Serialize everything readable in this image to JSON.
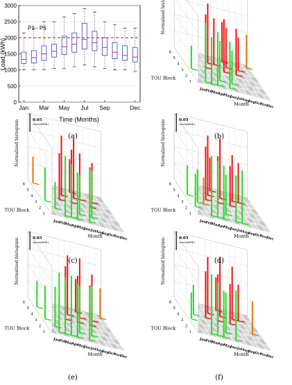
{
  "chart_data": [
    {
      "panel": "(a)",
      "type": "box",
      "xlabel": "Time (Months)",
      "ylabel": "Load (kWh)",
      "ylim": [
        0,
        3000
      ],
      "yticks": [
        "0",
        "500",
        "1000",
        "1500",
        "2000",
        "2500",
        "3000"
      ],
      "xtick_labels": [
        "Jan",
        "Mar",
        "May",
        "Jul",
        "Sep",
        "Dec"
      ],
      "categories": [
        "Jan",
        "Feb",
        "Mar",
        "Apr",
        "May",
        "Jun",
        "Jul",
        "Aug",
        "Sep",
        "Oct",
        "Nov",
        "Dec"
      ],
      "threshold": {
        "value": 2000,
        "label": "P1 - P6",
        "color": "#d62728"
      },
      "boxes": [
        {
          "min": 1000,
          "q1": 1200,
          "median": 1330,
          "q3": 1550,
          "max": 2150
        },
        {
          "min": 1000,
          "q1": 1220,
          "median": 1380,
          "q3": 1600,
          "max": 2300
        },
        {
          "min": 1000,
          "q1": 1300,
          "median": 1500,
          "q3": 1750,
          "max": 2500
        },
        {
          "min": 1050,
          "q1": 1400,
          "median": 1580,
          "q3": 1800,
          "max": 2500
        },
        {
          "min": 1050,
          "q1": 1480,
          "median": 1720,
          "q3": 2050,
          "max": 2650
        },
        {
          "min": 1100,
          "q1": 1550,
          "median": 1800,
          "q3": 2150,
          "max": 2750
        },
        {
          "min": 1150,
          "q1": 1650,
          "median": 1950,
          "q3": 2450,
          "max": 2900
        },
        {
          "min": 1100,
          "q1": 1600,
          "median": 1850,
          "q3": 2200,
          "max": 2800
        },
        {
          "min": 1050,
          "q1": 1450,
          "median": 1700,
          "q3": 2000,
          "max": 2500
        },
        {
          "min": 1000,
          "q1": 1350,
          "median": 1550,
          "q3": 1850,
          "max": 2400
        },
        {
          "min": 1000,
          "q1": 1300,
          "median": 1450,
          "q3": 1750,
          "max": 2300
        },
        {
          "min": 950,
          "q1": 1250,
          "median": 1400,
          "q3": 1700,
          "max": 2300
        }
      ],
      "colors": {
        "box": "#3b3bd6",
        "median": "#d62728",
        "whisker": "#555555"
      }
    },
    {
      "panel": "(b)",
      "type": "bar3d"
    },
    {
      "panel": "(c)",
      "type": "bar3d"
    },
    {
      "panel": "(d)",
      "type": "bar3d"
    },
    {
      "panel": "(e)",
      "type": "bar3d"
    },
    {
      "panel": "(f)",
      "type": "bar3d"
    }
  ],
  "histogram_common": {
    "zlabel": "Normalized histogram",
    "scale_value": "0.05",
    "scale_unit": "(euro/kWh)",
    "ylabel": "TOU Block",
    "xlabel": "Month",
    "months": [
      "Jan",
      "Feb",
      "Mar",
      "Apr",
      "May",
      "Jun",
      "Jul",
      "Aug",
      "Sep",
      "Oct",
      "Nov",
      "Dec"
    ],
    "blocks": [
      "1",
      "2",
      "3",
      "4",
      "5",
      "6"
    ],
    "colors": {
      "green": "#22dd22",
      "red": "#ee1111",
      "orange": "#e07a10",
      "floor": "#d0d0d0"
    }
  },
  "panel_bars": {
    "b": {
      "green": [
        [
          1,
          1,
          0.9
        ],
        [
          2,
          1,
          0.7
        ],
        [
          3,
          1,
          0.8
        ],
        [
          4,
          2,
          0.6
        ],
        [
          5,
          1,
          0.7
        ],
        [
          6,
          2,
          0.5
        ],
        [
          0,
          3,
          0.35
        ]
      ],
      "red": [
        [
          3,
          4,
          0.8
        ],
        [
          4,
          5,
          0.9
        ],
        [
          5,
          5,
          0.7
        ],
        [
          6,
          4,
          0.8
        ],
        [
          7,
          5,
          0.6
        ],
        [
          8,
          4,
          0.7
        ],
        [
          9,
          5,
          0.5
        ],
        [
          7,
          6,
          0.6
        ]
      ],
      "orange": [
        [
          11,
          6,
          0.5
        ]
      ]
    },
    "c": {
      "green": [
        [
          2,
          1,
          0.9
        ],
        [
          3,
          1,
          0.8
        ],
        [
          4,
          1,
          0.7
        ],
        [
          5,
          2,
          0.6
        ],
        [
          6,
          1,
          0.8
        ],
        [
          7,
          2,
          0.7
        ],
        [
          0,
          3,
          0.5
        ],
        [
          1,
          2,
          0.4
        ]
      ],
      "red": [
        [
          3,
          4,
          0.7
        ],
        [
          4,
          5,
          0.9
        ],
        [
          5,
          4,
          0.8
        ],
        [
          6,
          5,
          0.9
        ],
        [
          7,
          5,
          0.7
        ],
        [
          8,
          4,
          0.6
        ],
        [
          9,
          5,
          0.6
        ],
        [
          6,
          6,
          0.5
        ]
      ],
      "orange": [
        [
          0,
          6,
          0.4
        ]
      ]
    },
    "d": {
      "green": [
        [
          2,
          1,
          0.9
        ],
        [
          3,
          1,
          0.85
        ],
        [
          4,
          1,
          0.8
        ],
        [
          5,
          2,
          0.6
        ],
        [
          6,
          1,
          0.7
        ],
        [
          7,
          1,
          0.8
        ],
        [
          0,
          4,
          0.45
        ],
        [
          1,
          3,
          0.5
        ],
        [
          0,
          2,
          0.5
        ]
      ],
      "red": [
        [
          3,
          4,
          0.8
        ],
        [
          4,
          5,
          0.9
        ],
        [
          5,
          4,
          0.7
        ],
        [
          6,
          5,
          0.9
        ],
        [
          7,
          4,
          0.6
        ],
        [
          8,
          5,
          0.7
        ],
        [
          9,
          5,
          0.6
        ],
        [
          5,
          6,
          0.5
        ]
      ],
      "orange": [
        [
          2,
          3,
          0.4
        ]
      ]
    },
    "e": {
      "green": [
        [
          1,
          1,
          0.9
        ],
        [
          2,
          1,
          0.85
        ],
        [
          3,
          1,
          0.9
        ],
        [
          4,
          1,
          0.8
        ],
        [
          5,
          2,
          0.7
        ],
        [
          6,
          1,
          0.8
        ],
        [
          7,
          2,
          0.75
        ],
        [
          0,
          3,
          0.5
        ],
        [
          1,
          2,
          0.6
        ],
        [
          0,
          5,
          0.4
        ]
      ],
      "red": [
        [
          4,
          4,
          0.8
        ],
        [
          5,
          5,
          0.9
        ],
        [
          6,
          4,
          0.7
        ],
        [
          7,
          5,
          0.9
        ],
        [
          8,
          4,
          0.6
        ],
        [
          9,
          5,
          0.7
        ],
        [
          7,
          6,
          0.5
        ]
      ],
      "orange": [
        [
          11,
          6,
          0.45
        ]
      ]
    },
    "f": {
      "green": [
        [
          2,
          1,
          0.9
        ],
        [
          3,
          1,
          0.8
        ],
        [
          4,
          1,
          0.7
        ],
        [
          5,
          2,
          0.6
        ],
        [
          6,
          1,
          0.75
        ],
        [
          0,
          3,
          0.4
        ],
        [
          1,
          4,
          0.45
        ]
      ],
      "red": [
        [
          3,
          4,
          0.7
        ],
        [
          4,
          5,
          0.85
        ],
        [
          5,
          4,
          0.7
        ],
        [
          6,
          5,
          0.9
        ],
        [
          7,
          4,
          0.6
        ],
        [
          8,
          5,
          0.8
        ],
        [
          9,
          5,
          0.55
        ],
        [
          6,
          6,
          0.5
        ]
      ],
      "orange": [
        [
          10,
          3,
          0.5
        ]
      ]
    }
  },
  "panel_labels": [
    "(a)",
    "(b)",
    "(c)",
    "(d)",
    "(e)",
    "(f)"
  ]
}
